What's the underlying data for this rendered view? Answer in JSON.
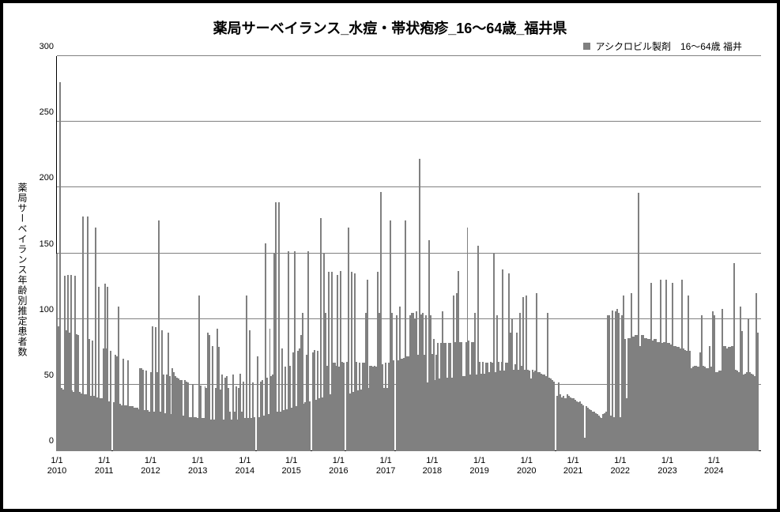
{
  "chart": {
    "type": "bar",
    "title": "薬局サーベイランス_水痘・帯状疱疹_16～64歳_福井県",
    "title_fontsize": 18,
    "legend": {
      "label": "アシクロビル製剤　16～64歳 福井",
      "fontsize": 12,
      "marker_color": "#808080"
    },
    "ylabel": "薬局サーベイランス年齢別推定患者数",
    "ylabel_fontsize": 12,
    "ylim": [
      0,
      300
    ],
    "yticks": [
      0,
      50,
      100,
      150,
      200,
      250,
      300
    ],
    "ytick_fontsize": 11,
    "xticks": [
      {
        "pos": 0.0,
        "top": "1/1",
        "bottom": "2010"
      },
      {
        "pos": 0.067,
        "top": "1/1",
        "bottom": "2011"
      },
      {
        "pos": 0.133,
        "top": "1/1",
        "bottom": "2012"
      },
      {
        "pos": 0.2,
        "top": "1/1",
        "bottom": "2013"
      },
      {
        "pos": 0.267,
        "top": "1/1",
        "bottom": "2014"
      },
      {
        "pos": 0.333,
        "top": "1/1",
        "bottom": "2015"
      },
      {
        "pos": 0.4,
        "top": "1/1",
        "bottom": "2016"
      },
      {
        "pos": 0.467,
        "top": "1/1",
        "bottom": "2017"
      },
      {
        "pos": 0.533,
        "top": "1/1",
        "bottom": "2018"
      },
      {
        "pos": 0.6,
        "top": "1/1",
        "bottom": "2019"
      },
      {
        "pos": 0.667,
        "top": "1/1",
        "bottom": "2020"
      },
      {
        "pos": 0.733,
        "top": "1/1",
        "bottom": "2021"
      },
      {
        "pos": 0.8,
        "top": "1/1",
        "bottom": "2022"
      },
      {
        "pos": 0.867,
        "top": "1/1",
        "bottom": "2023"
      },
      {
        "pos": 0.933,
        "top": "1/1",
        "bottom": "2024"
      }
    ],
    "xtick_fontsize": 11,
    "bar_color": "#808080",
    "background_color": "#ffffff",
    "grid_color": "#808080",
    "axis_color": "#000000",
    "values": [
      150,
      95,
      280,
      48,
      47,
      133,
      92,
      134,
      90,
      134,
      46,
      45,
      133,
      89,
      88,
      45,
      44,
      178,
      43,
      43,
      178,
      85,
      42,
      84,
      42,
      170,
      41,
      125,
      40,
      40,
      78,
      127,
      78,
      125,
      38,
      76,
      0,
      37,
      73,
      72,
      110,
      36,
      35,
      70,
      35,
      35,
      69,
      34,
      34,
      34,
      33,
      33,
      33,
      32,
      63,
      63,
      62,
      31,
      61,
      31,
      30,
      60,
      95,
      30,
      94,
      60,
      175,
      30,
      92,
      58,
      29,
      58,
      90,
      57,
      28,
      63,
      60,
      57,
      56,
      55,
      54,
      54,
      27,
      54,
      53,
      52,
      26,
      26,
      51,
      26,
      26,
      25,
      118,
      50,
      25,
      25,
      49,
      48,
      90,
      88,
      24,
      80,
      24,
      48,
      93,
      79,
      47,
      58,
      24,
      56,
      57,
      48,
      30,
      24,
      58,
      30,
      49,
      24,
      48,
      59,
      30,
      53,
      25,
      118,
      25,
      92,
      25,
      52,
      26,
      0,
      72,
      26,
      53,
      54,
      27,
      158,
      56,
      28,
      93,
      57,
      58,
      150,
      189,
      30,
      189,
      30,
      78,
      31,
      64,
      32,
      152,
      65,
      33,
      75,
      152,
      34,
      76,
      78,
      88,
      105,
      36,
      37,
      73,
      152,
      38,
      0,
      75,
      77,
      39,
      76,
      40,
      177,
      41,
      150,
      105,
      65,
      136,
      43,
      136,
      67,
      67,
      65,
      134,
      64,
      137,
      68,
      67,
      0,
      68,
      170,
      44,
      136,
      45,
      135,
      68,
      46,
      67,
      47,
      67,
      67,
      105,
      130,
      48,
      65,
      65,
      64,
      65,
      64,
      136,
      105,
      197,
      66,
      48,
      67,
      48,
      67,
      175,
      105,
      69,
      0,
      103,
      69,
      110,
      70,
      70,
      71,
      175,
      72,
      72,
      103,
      105,
      105,
      100,
      106,
      73,
      222,
      104,
      105,
      73,
      103,
      52,
      160,
      103,
      74,
      85,
      54,
      73,
      82,
      55,
      82,
      106,
      82,
      82,
      56,
      82,
      82,
      56,
      118,
      83,
      120,
      137,
      83,
      83,
      57,
      57,
      83,
      170,
      84,
      58,
      83,
      83,
      105,
      58,
      156,
      68,
      59,
      68,
      59,
      67,
      67,
      60,
      68,
      67,
      150,
      60,
      103,
      68,
      61,
      68,
      138,
      61,
      67,
      67,
      135,
      90,
      100,
      62,
      66,
      90,
      62,
      105,
      65,
      117,
      62,
      118,
      62,
      61,
      55,
      62,
      60,
      61,
      120,
      60,
      60,
      59,
      58,
      58,
      57,
      105,
      56,
      55,
      54,
      53,
      0,
      42,
      52,
      43,
      41,
      42,
      40,
      40,
      43,
      42,
      41,
      40,
      40,
      39,
      38,
      37,
      38,
      36,
      35,
      10,
      34,
      33,
      32,
      31,
      30,
      30,
      29,
      28,
      27,
      26,
      25,
      28,
      29,
      30,
      103,
      103,
      27,
      107,
      26,
      106,
      108,
      105,
      26,
      103,
      118,
      85,
      40,
      86,
      86,
      120,
      87,
      87,
      88,
      88,
      196,
      80,
      88,
      88,
      86,
      86,
      85,
      85,
      128,
      84,
      85,
      85,
      83,
      83,
      130,
      82,
      83,
      83,
      130,
      82,
      82,
      81,
      128,
      80,
      80,
      79,
      79,
      78,
      130,
      78,
      77,
      76,
      118,
      76,
      63,
      64,
      65,
      65,
      64,
      64,
      75,
      103,
      65,
      64,
      63,
      63,
      80,
      64,
      106,
      103,
      60,
      60,
      61,
      61,
      108,
      80,
      80,
      78,
      79,
      79,
      80,
      80,
      143,
      62,
      61,
      60,
      110,
      91,
      58,
      59,
      60,
      100,
      60,
      59,
      58,
      57,
      120,
      90
    ]
  }
}
